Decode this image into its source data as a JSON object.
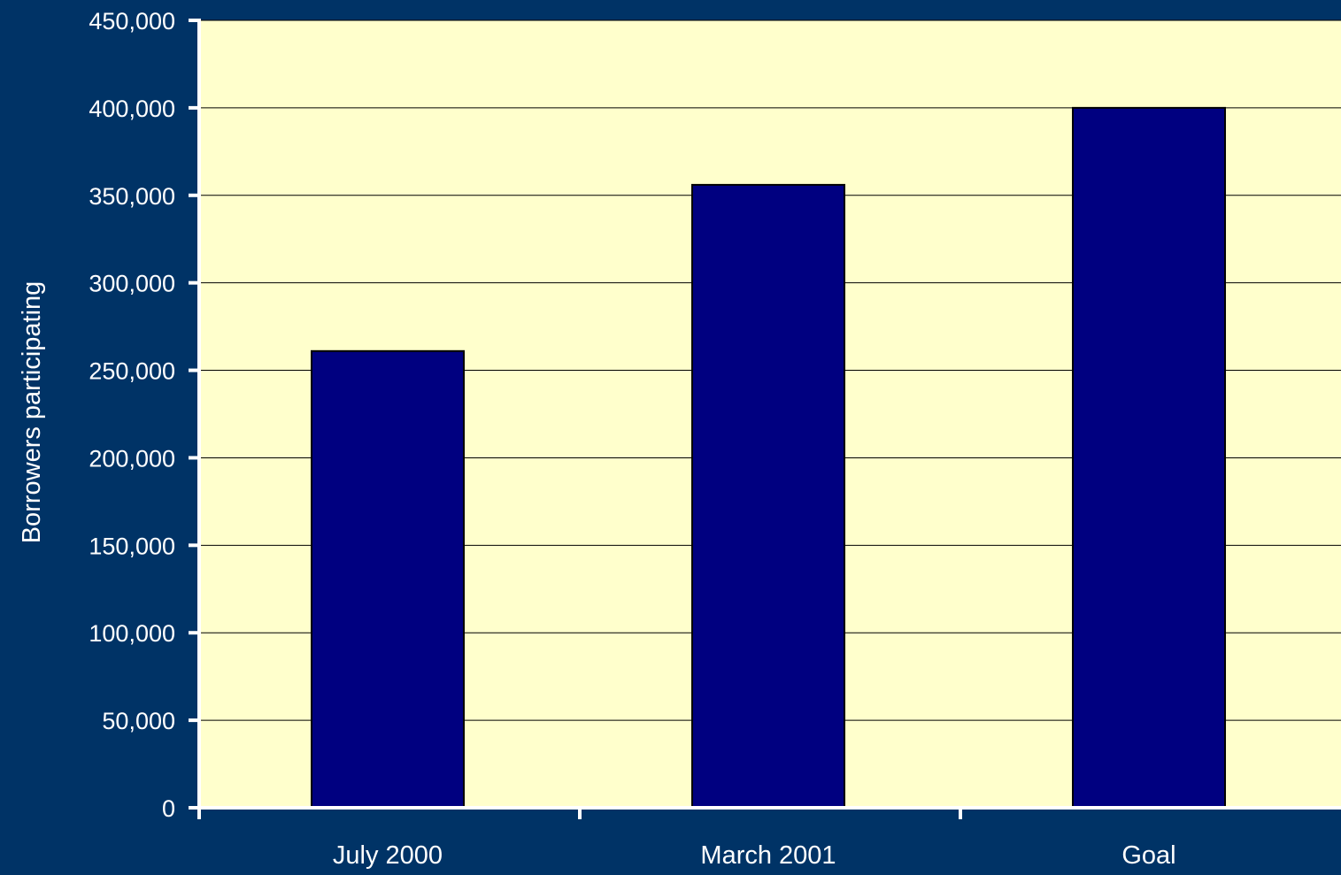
{
  "colors": {
    "background": "#003366",
    "plot_area": "#FFFFCC",
    "bar_fill": "#000080",
    "bar_stroke": "#000000",
    "gridline": "#000000",
    "axis": "#ffffff",
    "text": "#ffffff"
  },
  "chart_data": {
    "type": "bar",
    "title": "",
    "xlabel": "",
    "ylabel": "Borrowers participating",
    "categories": [
      "July 2000",
      "March 2001",
      "Goal"
    ],
    "values": [
      261000,
      356000,
      400000
    ],
    "ylim": [
      0,
      450000
    ],
    "yticks": [
      0,
      50000,
      100000,
      150000,
      200000,
      250000,
      300000,
      350000,
      400000,
      450000
    ],
    "ytick_labels": [
      "0",
      "50,000",
      "100,000",
      "150,000",
      "200,000",
      "250,000",
      "300,000",
      "350,000",
      "400,000",
      "450,000"
    ],
    "grid": true,
    "legend": "none"
  }
}
